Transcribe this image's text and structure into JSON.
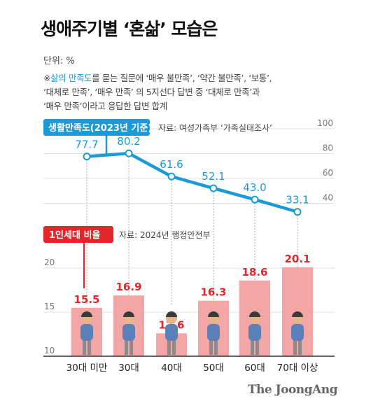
{
  "title": "생애주기별 ‘혼삶’ 모습은",
  "unit": "단위: %",
  "note": {
    "marker": "※",
    "highlight": "삶의 만족도",
    "line1_rest": "를 묻는 질문에 ‘매우 불만족’, ‘약간 불만족’, ‘보통’,",
    "line2": "‘대체로 만족’, ‘매우 만족’ 의 5지선다 답변 중 ‘대체로 만족’과",
    "line3": "‘매우 만족’이라고 응답한 답변 합계"
  },
  "footer": "The JoongAng",
  "chart_data": [
    {
      "type": "line",
      "label": "생활만족도(2023년 기준)",
      "source": "자료: 여성가족부 ‘가족실태조사’",
      "categories": [
        "30대 미만",
        "30대",
        "40대",
        "50대",
        "60대",
        "70대 이상"
      ],
      "values": [
        77.7,
        80.2,
        61.6,
        52.1,
        43.0,
        33.1
      ],
      "value_labels": [
        "77.7",
        "80.2",
        "61.6",
        "52.1",
        "43.0",
        "33.1"
      ],
      "ylim": [
        20,
        100
      ],
      "yticks": [
        "100",
        "80",
        "60",
        "40"
      ],
      "color": "#1a9bd7",
      "grid": true
    },
    {
      "type": "bar",
      "label": "1인세대 비율",
      "source": "자료: 2024년 행정안전부",
      "categories": [
        "30대 미만",
        "30대",
        "40대",
        "50대",
        "60대",
        "70대 이상"
      ],
      "values": [
        15.5,
        16.9,
        12.6,
        16.3,
        18.6,
        20.1
      ],
      "value_labels": [
        "15.5",
        "16.9",
        "12.6",
        "16.3",
        "18.6",
        "20.1"
      ],
      "ylim": [
        10,
        22
      ],
      "yticks": [
        "20",
        "15",
        "10"
      ],
      "color": "#f4a6a6",
      "label_color": "#e2262b",
      "grid": true
    }
  ]
}
